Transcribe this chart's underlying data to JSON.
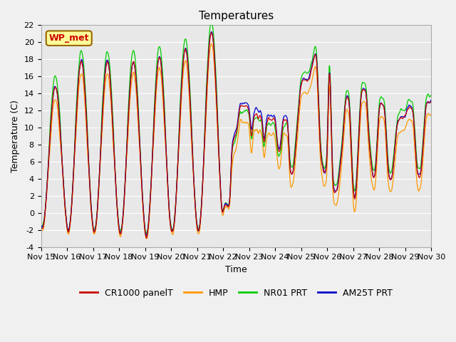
{
  "title": "Temperatures",
  "ylabel": "Temperature (C)",
  "xlabel": "Time",
  "ylim": [
    -4,
    22
  ],
  "yticks": [
    -4,
    -2,
    0,
    2,
    4,
    6,
    8,
    10,
    12,
    14,
    16,
    18,
    20,
    22
  ],
  "xtick_labels": [
    "Nov 15",
    "Nov 16",
    "Nov 17",
    "Nov 18",
    "Nov 19",
    "Nov 20",
    "Nov 21",
    "Nov 22",
    "Nov 23",
    "Nov 24",
    "Nov 25",
    "Nov 26",
    "Nov 27",
    "Nov 28",
    "Nov 29",
    "Nov 30"
  ],
  "series_colors": [
    "#cc0000",
    "#ff9900",
    "#00cc00",
    "#0000cc"
  ],
  "series_labels": [
    "CR1000 panelT",
    "HMP",
    "NR01 PRT",
    "AM25T PRT"
  ],
  "legend_box_color": "#ffff99",
  "legend_box_edge": "#996600",
  "station_label": "WP_met",
  "axes_bg_color": "#e8e8e8",
  "grid_color": "white",
  "title_fontsize": 11,
  "axis_fontsize": 9,
  "tick_fontsize": 8
}
